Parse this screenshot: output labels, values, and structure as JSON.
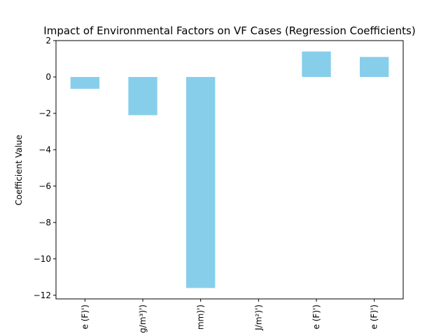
{
  "chart_data": {
    "type": "bar",
    "title": "Impact of Environmental Factors on VF Cases (Regression Coefficients)",
    "xlabel": "",
    "ylabel": "Coefficient Value",
    "categories": [
      "e (F)')",
      "g/m³)')",
      "mm)')",
      "J/m²)')",
      "e (F)')",
      "e (F)')"
    ],
    "values": [
      -0.65,
      -2.1,
      -11.6,
      0.0,
      1.4,
      1.1
    ],
    "ylim": [
      -12.2,
      2.0
    ],
    "yticks": [
      2,
      0,
      -2,
      -4,
      -6,
      -8,
      -10,
      -12
    ],
    "ytick_labels": [
      "2",
      "0",
      "−2",
      "−4",
      "−6",
      "−8",
      "−10",
      "−12"
    ],
    "grid": false,
    "colors": {
      "bar": "#87ceeb"
    }
  }
}
